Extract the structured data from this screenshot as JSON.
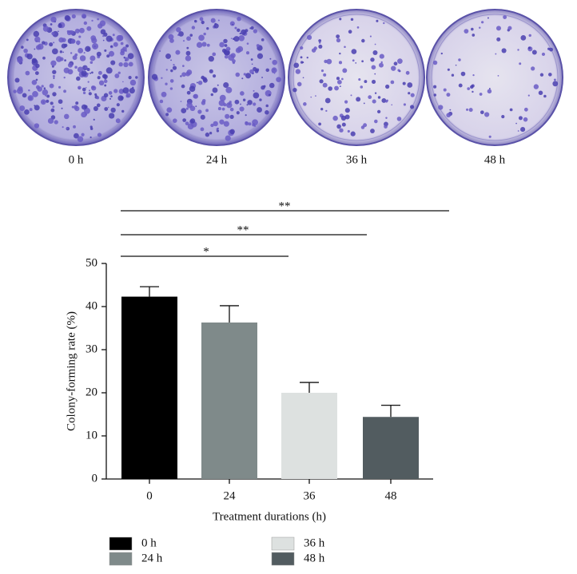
{
  "images": {
    "labels": [
      "0 h",
      "24 h",
      "36 h",
      "48 h"
    ]
  },
  "chart_data": {
    "type": "bar",
    "categories": [
      "0",
      "24",
      "36",
      "48"
    ],
    "series": [
      {
        "name": "0 h",
        "color": "#000000"
      },
      {
        "name": "24 h",
        "color": "#7f8a8a"
      },
      {
        "name": "36 h",
        "color": "#dde1e0"
      },
      {
        "name": "48 h",
        "color": "#525c60"
      }
    ],
    "values": [
      42.3,
      36.3,
      20.0,
      14.4
    ],
    "errors": [
      2.3,
      3.9,
      2.4,
      2.7
    ],
    "ylim": [
      0,
      50
    ],
    "yticks": [
      0,
      10,
      20,
      30,
      40,
      50
    ],
    "ylabel": "Colony-forming rate (%)",
    "xlabel": "Treatment durations (h)",
    "annotations": [
      "*",
      "**",
      "**"
    ]
  }
}
